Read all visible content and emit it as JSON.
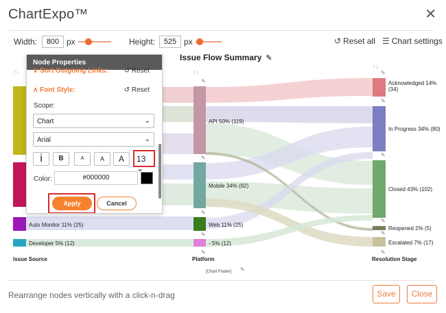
{
  "app": {
    "title": "ChartExpo™"
  },
  "toolbar": {
    "width_label": "Width:",
    "width_value": "800",
    "width_unit": "px",
    "height_label": "Height:",
    "height_value": "525",
    "height_unit": "px",
    "reset_all": "Reset all",
    "chart_settings": "Chart settings"
  },
  "chart": {
    "title": "Issue Flow Summary",
    "footer": "[Chart Footer]",
    "axis_labels": [
      "Issue Source",
      "Platform",
      "Resolution Stage"
    ],
    "node_labels": {
      "auto_monitor": "Auto Monitor 11% (25)",
      "developer": "Developer 5% (12)",
      "api": "API 50% (119)",
      "mobile": "Mobile 34% (82)",
      "web": "Web 11% (25)",
      "dash": "- 5% (12)",
      "acknowledged_l1": "Acknowledged 14%",
      "acknowledged_l2": "(34)",
      "in_progress": "In Progress 34% (80)",
      "closed": "Closed 43% (102)",
      "reopened": "Reopened 2% (5)",
      "escalated": "Escalated 7% (17)"
    },
    "colors": {
      "source_1": "#c2b61c",
      "source_2": "#c4155a",
      "auto_monitor": "#9b18b8",
      "developer": "#25a7c2",
      "api": "#c397a6",
      "mobile": "#72a8a0",
      "web": "#3a7d1c",
      "dash": "#e07ed8",
      "acknowledged": "#e07a7e",
      "in_progress": "#7e7ec2",
      "closed": "#6fa96e",
      "reopened": "#7c7c5c",
      "escalated": "#c8c29c"
    }
  },
  "chart_data": {
    "type": "sankey",
    "title": "Issue Flow Summary",
    "columns": [
      "Issue Source",
      "Platform",
      "Resolution Stage"
    ],
    "nodes": [
      {
        "name": "Auto Monitor",
        "column": "Issue Source",
        "percent": 11,
        "value": 25
      },
      {
        "name": "Developer",
        "column": "Issue Source",
        "percent": 5,
        "value": 12
      },
      {
        "name": "API",
        "column": "Platform",
        "percent": 50,
        "value": 119
      },
      {
        "name": "Mobile",
        "column": "Platform",
        "percent": 34,
        "value": 82
      },
      {
        "name": "Web",
        "column": "Platform",
        "percent": 11,
        "value": 25
      },
      {
        "name": "-",
        "column": "Platform",
        "percent": 5,
        "value": 12
      },
      {
        "name": "Acknowledged",
        "column": "Resolution Stage",
        "percent": 14,
        "value": 34
      },
      {
        "name": "In Progress",
        "column": "Resolution Stage",
        "percent": 34,
        "value": 80
      },
      {
        "name": "Closed",
        "column": "Resolution Stage",
        "percent": 43,
        "value": 102
      },
      {
        "name": "Reopened",
        "column": "Resolution Stage",
        "percent": 2,
        "value": 5
      },
      {
        "name": "Escalated",
        "column": "Resolution Stage",
        "percent": 7,
        "value": 17
      }
    ]
  },
  "panel": {
    "header": "Node Properties",
    "prev_section": "Sort Outgoing Links:",
    "reset": "Reset",
    "font_section": "Font Style:",
    "scope_label": "Scope:",
    "scope_value": "Chart",
    "font_value": "Arial",
    "italic_label": "i",
    "bold_label": "B",
    "size_small": "A",
    "size_mid": "A",
    "size_large": "A",
    "font_size": "13",
    "color_label": "Color:",
    "color_value": "#000000",
    "apply": "Apply",
    "cancel": "Cancel"
  },
  "footer": {
    "hint": "Rearrange nodes vertically with a click-n-drag",
    "save": "Save",
    "close": "Close"
  }
}
